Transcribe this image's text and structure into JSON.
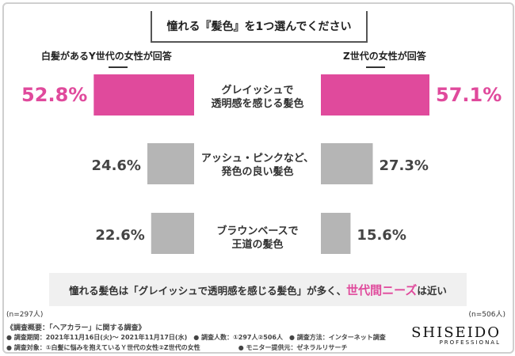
{
  "question": "憧れる『髪色』を1つ選んでください",
  "group_left": "白髪があるY世代の女性が回答",
  "group_right": "Z世代の女性が回答",
  "summary": {
    "prefix": "憧れる髪色は「グレイッシュで透明感を感じる髪色」が多く、",
    "highlight": "世代間ニーズ",
    "suffix": "は近い"
  },
  "note_left": "(n=297人)",
  "note_right": "(n=506人)",
  "footer": {
    "line1": "《調査概要：「ヘアカラー」に関する調査》",
    "line2": "● 調査期間：2021年11月16日(火)〜 2021年11月17日(水)　● 調査人数：①297人②506人　● 調査方法：インターネット調査",
    "line3": "● 調査対象：①白髪に悩みを抱えているＹ世代の女性②Z世代の女性　　　　　　● モニター提供元：ゼネラルリサーチ"
  },
  "brand": {
    "name": "SHISEIDO",
    "sub": "PROFESSIONAL"
  },
  "colors": {
    "highlight": "#e04a9c",
    "neutral": "#b5b5b5"
  },
  "chart_data": {
    "type": "bar",
    "orientation": "horizontal-butterfly",
    "categories": [
      [
        "グレイッシュで",
        "透明感を感じる髪色"
      ],
      [
        "アッシュ・ピンクなど、",
        "発色の良い髪色"
      ],
      [
        "ブラウンベースで",
        "王道の髪色"
      ]
    ],
    "series": [
      {
        "name": "白髪があるY世代の女性が回答",
        "values": [
          52.8,
          24.6,
          22.6
        ],
        "labels": [
          "52.8%",
          "24.6%",
          "22.6%"
        ]
      },
      {
        "name": "Z世代の女性が回答",
        "values": [
          57.1,
          27.3,
          15.6
        ],
        "labels": [
          "57.1%",
          "27.3%",
          "15.6%"
        ]
      }
    ],
    "highlight_index": 0
  }
}
